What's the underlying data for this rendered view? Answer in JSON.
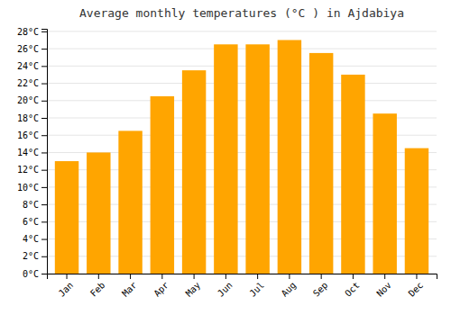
{
  "chart_data": {
    "type": "bar",
    "title": "Average monthly temperatures (°C ) in Ajdabiya",
    "categories": [
      "Jan",
      "Feb",
      "Mar",
      "Apr",
      "May",
      "Jun",
      "Jul",
      "Aug",
      "Sep",
      "Oct",
      "Nov",
      "Dec"
    ],
    "values": [
      13,
      14,
      16.5,
      20.5,
      23.5,
      26.5,
      26.5,
      27,
      25.5,
      23,
      18.5,
      14.5
    ],
    "color": "#FFA500",
    "ylim": [
      0,
      28.3
    ],
    "yticks": [
      {
        "value": 0,
        "label": "0°C"
      },
      {
        "value": 2,
        "label": "2°C"
      },
      {
        "value": 4,
        "label": "4°C"
      },
      {
        "value": 6,
        "label": "6°C"
      },
      {
        "value": 8,
        "label": "8°C"
      },
      {
        "value": 10,
        "label": "10°C"
      },
      {
        "value": 12,
        "label": "12°C"
      },
      {
        "value": 14,
        "label": "14°C"
      },
      {
        "value": 16,
        "label": "16°C"
      },
      {
        "value": 18,
        "label": "18°C"
      },
      {
        "value": 20,
        "label": "20°C"
      },
      {
        "value": 22,
        "label": "22°C"
      },
      {
        "value": 24,
        "label": "24°C"
      },
      {
        "value": 26,
        "label": "26°C"
      },
      {
        "value": 28,
        "label": "28°C"
      }
    ],
    "grid": true
  }
}
